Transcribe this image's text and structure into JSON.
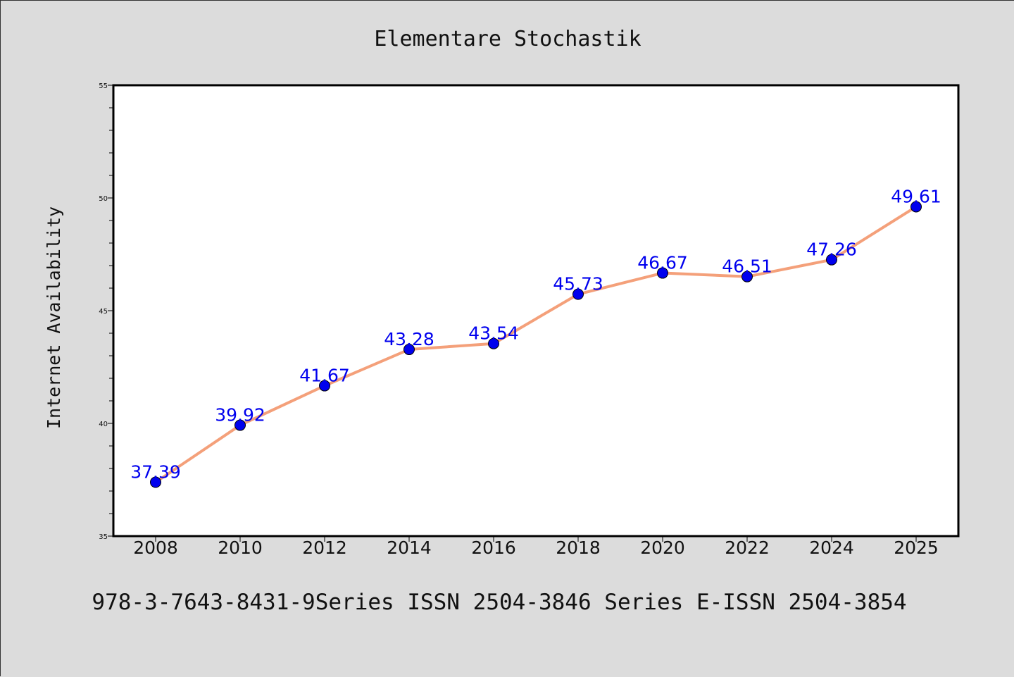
{
  "colors": {
    "background": "#dcdcdc",
    "plot_background": "#ffffff",
    "line": "#f4a07a",
    "marker": "#0000ee",
    "data_label": "#0000ee",
    "text": "#111111"
  },
  "chart_data": {
    "type": "line",
    "title": "Elementare Stochastik",
    "xlabel": "",
    "ylabel": "Internet Availability",
    "x": [
      "2008",
      "2010",
      "2012",
      "2014",
      "2016",
      "2018",
      "2020",
      "2022",
      "2024",
      "2025"
    ],
    "series": [
      {
        "values": [
          37.39,
          39.92,
          41.67,
          43.28,
          43.54,
          45.73,
          46.67,
          46.51,
          47.26,
          49.61
        ],
        "labels": [
          "37.39",
          "39.92",
          "41.67",
          "43.28",
          "43.54",
          "45.73",
          "46.67",
          "46.51",
          "47.26",
          "49.61"
        ]
      }
    ],
    "ylim": [
      35,
      55
    ],
    "yticks": [
      "35",
      "40",
      "45",
      "50",
      "55"
    ],
    "grid": false,
    "legend": "none",
    "footer": "978-3-7643-8431-9Series ISSN 2504-3846 Series E-ISSN 2504-3854"
  }
}
